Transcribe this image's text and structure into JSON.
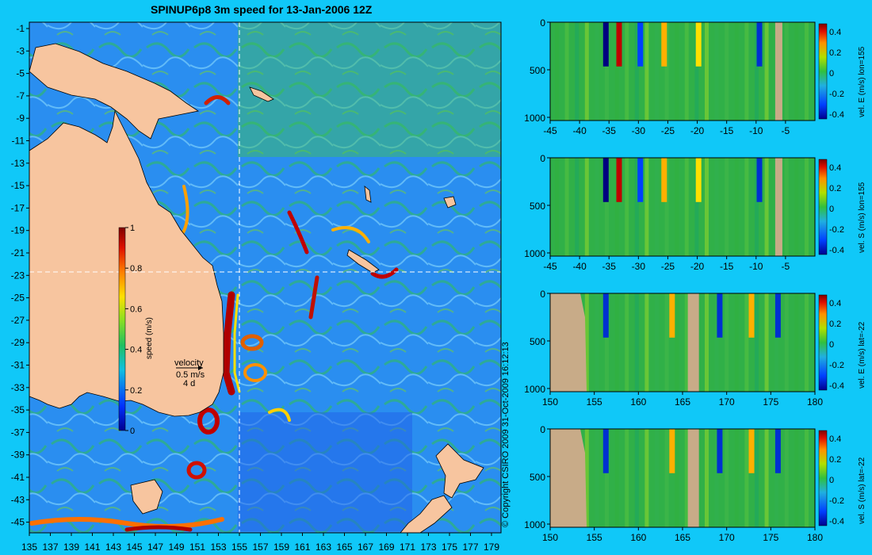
{
  "title": "SPINUP6p8 3m speed for 13-Jan-2006 12Z",
  "copyright": "© Copyright CSIRO 2009   31-Oct-2009 16:12:13",
  "colors": {
    "background": "#10c8f8",
    "land_map": "#f7c59f",
    "land_section": "#c8ab88",
    "crosshair": "#ffffff"
  },
  "map": {
    "lon_ticks": [
      "135",
      "137",
      "139",
      "141",
      "143",
      "145",
      "147",
      "149",
      "151",
      "153",
      "155",
      "157",
      "159",
      "161",
      "163",
      "165",
      "167",
      "169",
      "171",
      "173",
      "175",
      "177",
      "179"
    ],
    "lat_ticks": [
      "-1",
      "-3",
      "-5",
      "-7",
      "-9",
      "-11",
      "-13",
      "-15",
      "-17",
      "-19",
      "-21",
      "-23",
      "-25",
      "-27",
      "-29",
      "-31",
      "-33",
      "-35",
      "-37",
      "-39",
      "-41",
      "-43",
      "-45"
    ],
    "crosshair": {
      "lon": 155,
      "lat": -22
    },
    "colorbar": {
      "label": "speed (m/s)",
      "min": 0,
      "max": 1,
      "ticks": [
        "0",
        "0.2",
        "0.4",
        "0.6",
        "0.8",
        "1"
      ]
    },
    "velocity_key": {
      "title": "velocity",
      "line1": "0.5 m/s",
      "line2": "4 d"
    }
  },
  "sections": [
    {
      "label": "vel. E (m/s) lon=155",
      "axis": "lat",
      "x_ticks": [
        "-45",
        "-40",
        "-35",
        "-30",
        "-25",
        "-20",
        "-15",
        "-10",
        "-5"
      ],
      "y_ticks": [
        "0",
        "500",
        "1000"
      ],
      "cbar_ticks": [
        "0.4",
        "0.2",
        "0",
        "-0.2",
        "-0.4"
      ]
    },
    {
      "label": "vel. S (m/s) lon=155",
      "axis": "lat",
      "x_ticks": [
        "-45",
        "-40",
        "-35",
        "-30",
        "-25",
        "-20",
        "-15",
        "-10",
        "-5"
      ],
      "y_ticks": [
        "0",
        "500",
        "1000"
      ],
      "cbar_ticks": [
        "0.4",
        "0.2",
        "0",
        "-0.2",
        "-0.4"
      ]
    },
    {
      "label": "vel. E (m/s) lat=-22",
      "axis": "lon",
      "x_ticks": [
        "150",
        "155",
        "160",
        "165",
        "170",
        "175",
        "180"
      ],
      "y_ticks": [
        "0",
        "500",
        "1000"
      ],
      "cbar_ticks": [
        "0.4",
        "0.2",
        "0",
        "-0.2",
        "-0.4"
      ]
    },
    {
      "label": "vel. S (m/s) lat=-22",
      "axis": "lon",
      "x_ticks": [
        "150",
        "155",
        "160",
        "165",
        "170",
        "175",
        "180"
      ],
      "y_ticks": [
        "0",
        "500",
        "1000"
      ],
      "cbar_ticks": [
        "0.4",
        "0.2",
        "0",
        "-0.2",
        "-0.4"
      ]
    }
  ]
}
